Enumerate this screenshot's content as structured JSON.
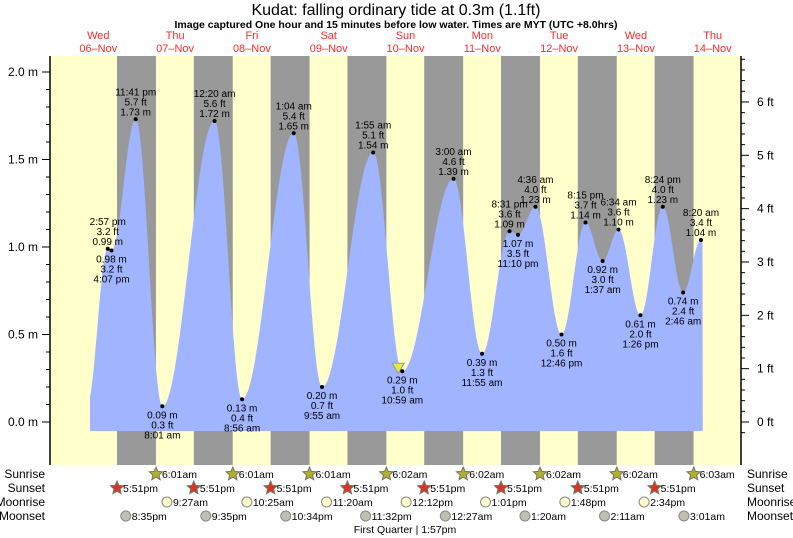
{
  "title": "Kudat: falling  ordinary tide at 0.3m (1.1ft)",
  "subtitle": "Image captured One hour and 15 minutes before low water. Times are MYT (UTC +8.0hrs)",
  "colors": {
    "day": "#ffffcc",
    "night": "#999999",
    "water": "#a0b4ff",
    "date_text": "#ff2a2a",
    "sunrise": "#b0b030",
    "sunset": "#dd3322",
    "moonrise": "#ffffcc",
    "moonset": "#c0c0b0",
    "now_marker": "#e8e840"
  },
  "days": [
    {
      "dow": "Wed",
      "date": "06–Nov"
    },
    {
      "dow": "Thu",
      "date": "07–Nov"
    },
    {
      "dow": "Fri",
      "date": "08–Nov"
    },
    {
      "dow": "Sat",
      "date": "09–Nov"
    },
    {
      "dow": "Sun",
      "date": "10–Nov"
    },
    {
      "dow": "Mon",
      "date": "11–Nov"
    },
    {
      "dow": "Tue",
      "date": "12–Nov"
    },
    {
      "dow": "Wed",
      "date": "13–Nov"
    },
    {
      "dow": "Thu",
      "date": "14–Nov"
    }
  ],
  "chart_data": {
    "type": "area",
    "title": "Kudat: falling  ordinary tide at 0.3m (1.1ft)",
    "left_axis": {
      "unit": "m",
      "ticks": [
        "0.0 m",
        "0.5 m",
        "1.0 m",
        "1.5 m",
        "2.0 m"
      ],
      "range_m": [
        -0.05,
        2.05
      ]
    },
    "right_axis": {
      "unit": "ft",
      "ticks": [
        "0 ft",
        "1 ft",
        "2 ft",
        "3 ft",
        "4 ft",
        "5 ft",
        "6 ft"
      ]
    },
    "tides": [
      {
        "day": 0,
        "time": "2:57 pm",
        "ft": "3.2 ft",
        "m": "0.99 m",
        "value": 0.99,
        "type": "high"
      },
      {
        "day": 0,
        "time": "4:07 pm",
        "ft": "3.2 ft",
        "m": "0.98 m",
        "value": 0.98,
        "type": "low"
      },
      {
        "day": 0,
        "time": "11:41 pm",
        "ft": "5.7 ft",
        "m": "1.73 m",
        "value": 1.73,
        "type": "high"
      },
      {
        "day": 1,
        "time": "8:01 am",
        "ft": "0.3 ft",
        "m": "0.09 m",
        "value": 0.09,
        "type": "low"
      },
      {
        "day": 2,
        "time": "12:20 am",
        "ft": "5.6 ft",
        "m": "1.72 m",
        "value": 1.72,
        "type": "high"
      },
      {
        "day": 2,
        "time": "8:56 am",
        "ft": "0.4 ft",
        "m": "0.13 m",
        "value": 0.13,
        "type": "low"
      },
      {
        "day": 3,
        "time": "1:04 am",
        "ft": "5.4 ft",
        "m": "1.65 m",
        "value": 1.65,
        "type": "high"
      },
      {
        "day": 3,
        "time": "9:55 am",
        "ft": "0.7 ft",
        "m": "0.20 m",
        "value": 0.2,
        "type": "low"
      },
      {
        "day": 4,
        "time": "1:55 am",
        "ft": "5.1 ft",
        "m": "1.54 m",
        "value": 1.54,
        "type": "high"
      },
      {
        "day": 4,
        "time": "10:59 am",
        "ft": "1.0 ft",
        "m": "0.29 m",
        "value": 0.29,
        "type": "low"
      },
      {
        "day": 5,
        "time": "3:00 am",
        "ft": "4.6 ft",
        "m": "1.39 m",
        "value": 1.39,
        "type": "high"
      },
      {
        "day": 5,
        "time": "11:55 am",
        "ft": "1.3 ft",
        "m": "0.39 m",
        "value": 0.39,
        "type": "low"
      },
      {
        "day": 5,
        "time": "8:31 pm",
        "ft": "3.6 ft",
        "m": "1.09 m",
        "value": 1.09,
        "type": "high"
      },
      {
        "day": 5,
        "time": "11:10 pm",
        "ft": "3.5 ft",
        "m": "1.07 m",
        "value": 1.07,
        "type": "low"
      },
      {
        "day": 6,
        "time": "4:36 am",
        "ft": "4.0 ft",
        "m": "1.23 m",
        "value": 1.23,
        "type": "high"
      },
      {
        "day": 6,
        "time": "12:46 pm",
        "ft": "1.6 ft",
        "m": "0.50 m",
        "value": 0.5,
        "type": "low"
      },
      {
        "day": 6,
        "time": "8:15 pm",
        "ft": "3.7 ft",
        "m": "1.14 m",
        "value": 1.14,
        "type": "high"
      },
      {
        "day": 7,
        "time": "1:37 am",
        "ft": "3.0 ft",
        "m": "0.92 m",
        "value": 0.92,
        "type": "low"
      },
      {
        "day": 7,
        "time": "6:34 am",
        "ft": "3.6 ft",
        "m": "1.10 m",
        "value": 1.1,
        "type": "high"
      },
      {
        "day": 7,
        "time": "1:26 pm",
        "ft": "2.0 ft",
        "m": "0.61 m",
        "value": 0.61,
        "type": "low"
      },
      {
        "day": 7,
        "time": "8:24 pm",
        "ft": "4.0 ft",
        "m": "1.23 m",
        "value": 1.23,
        "type": "high"
      },
      {
        "day": 8,
        "time": "2:46 am",
        "ft": "2.4 ft",
        "m": "0.74 m",
        "value": 0.74,
        "type": "low"
      },
      {
        "day": 8,
        "time": "8:20 am",
        "ft": "3.4 ft",
        "m": "1.04 m",
        "value": 1.04,
        "type": "high"
      }
    ]
  },
  "astro": {
    "labels": {
      "sunrise": "Sunrise",
      "sunset": "Sunset",
      "moonrise": "Moonrise",
      "moonset": "Moonset"
    },
    "sunrise": [
      {
        "day": 1,
        "time": "6:01am"
      },
      {
        "day": 2,
        "time": "6:01am"
      },
      {
        "day": 3,
        "time": "6:01am"
      },
      {
        "day": 4,
        "time": "6:02am"
      },
      {
        "day": 5,
        "time": "6:02am"
      },
      {
        "day": 6,
        "time": "6:02am"
      },
      {
        "day": 7,
        "time": "6:02am"
      },
      {
        "day": 8,
        "time": "6:03am"
      }
    ],
    "sunset": [
      {
        "day": 0,
        "time": "5:51pm"
      },
      {
        "day": 1,
        "time": "5:51pm"
      },
      {
        "day": 2,
        "time": "5:51pm"
      },
      {
        "day": 3,
        "time": "5:51pm"
      },
      {
        "day": 4,
        "time": "5:51pm"
      },
      {
        "day": 5,
        "time": "5:51pm"
      },
      {
        "day": 6,
        "time": "5:51pm"
      },
      {
        "day": 7,
        "time": "5:51pm"
      }
    ],
    "moonrise": [
      {
        "day": 1,
        "time": "9:27am"
      },
      {
        "day": 2,
        "time": "10:25am"
      },
      {
        "day": 3,
        "time": "11:20am"
      },
      {
        "day": 4,
        "time": "12:12pm"
      },
      {
        "day": 5,
        "time": "1:01pm"
      },
      {
        "day": 6,
        "time": "1:48pm"
      },
      {
        "day": 7,
        "time": "2:34pm"
      }
    ],
    "moonset": [
      {
        "day": 0,
        "time": "8:35pm"
      },
      {
        "day": 1,
        "time": "9:35pm"
      },
      {
        "day": 2,
        "time": "10:34pm"
      },
      {
        "day": 3,
        "time": "11:32pm"
      },
      {
        "day": 5,
        "time": "12:27am"
      },
      {
        "day": 6,
        "time": "1:20am"
      },
      {
        "day": 7,
        "time": "2:11am"
      },
      {
        "day": 8,
        "time": "3:01am"
      }
    ],
    "moon_phase": "First Quarter | 1:57pm"
  }
}
